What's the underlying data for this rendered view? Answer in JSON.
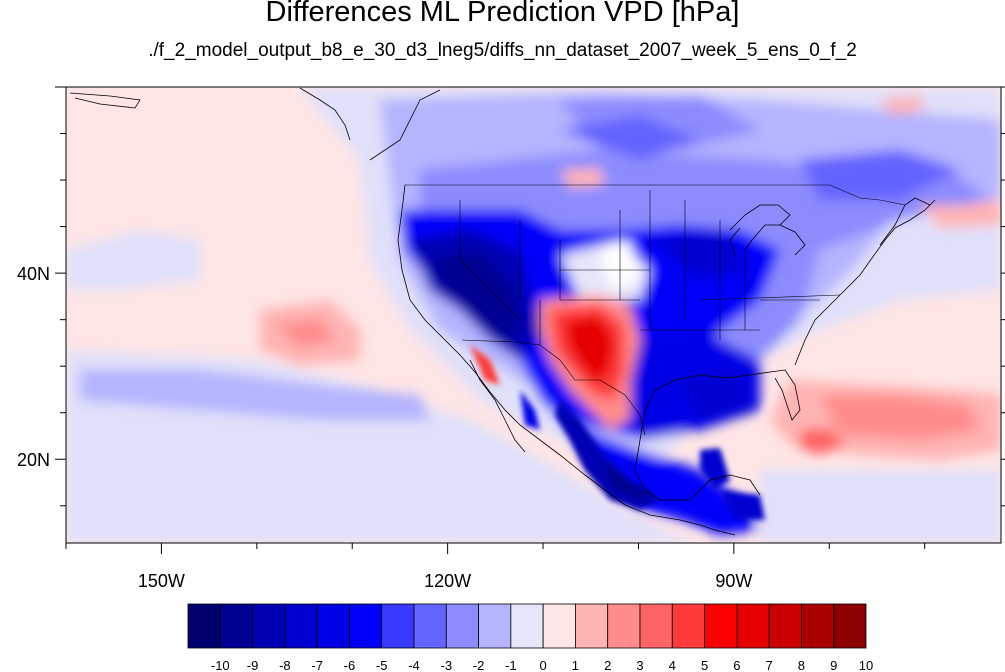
{
  "title": "Differences ML Prediction VPD [hPa]",
  "subtitle": "./f_2_model_output_b8_e_30_d3_lneg5/diffs_nn_dataset_2007_week_5_ens_0_f_2",
  "map": {
    "lon_range": [
      -160,
      -62
    ],
    "lat_range": [
      11,
      60
    ],
    "lon_ticks": [
      {
        "value": -150,
        "label": "150W"
      },
      {
        "value": -120,
        "label": "120W"
      },
      {
        "value": -90,
        "label": "90W"
      }
    ],
    "lat_ticks": [
      {
        "value": 40,
        "label": "40N"
      },
      {
        "value": 20,
        "label": "20N"
      }
    ]
  },
  "colorbar": {
    "labels": [
      "-10",
      "-9",
      "-8",
      "-7",
      "-6",
      "-5",
      "-4",
      "-3",
      "-2",
      "-1",
      "0",
      "1",
      "2",
      "3",
      "4",
      "5",
      "6",
      "7",
      "8",
      "9",
      "10"
    ],
    "colors": [
      "#00006e",
      "#000092",
      "#0000b4",
      "#0000d0",
      "#0000e6",
      "#0000fa",
      "#3a3aff",
      "#6464ff",
      "#8c8cff",
      "#b4b4ff",
      "#e6e6fa",
      "#ffe6e6",
      "#ffb4b4",
      "#ff8c8c",
      "#ff6464",
      "#ff3a3a",
      "#ff0000",
      "#e60000",
      "#cc0000",
      "#aa0000",
      "#8c0000"
    ]
  }
}
